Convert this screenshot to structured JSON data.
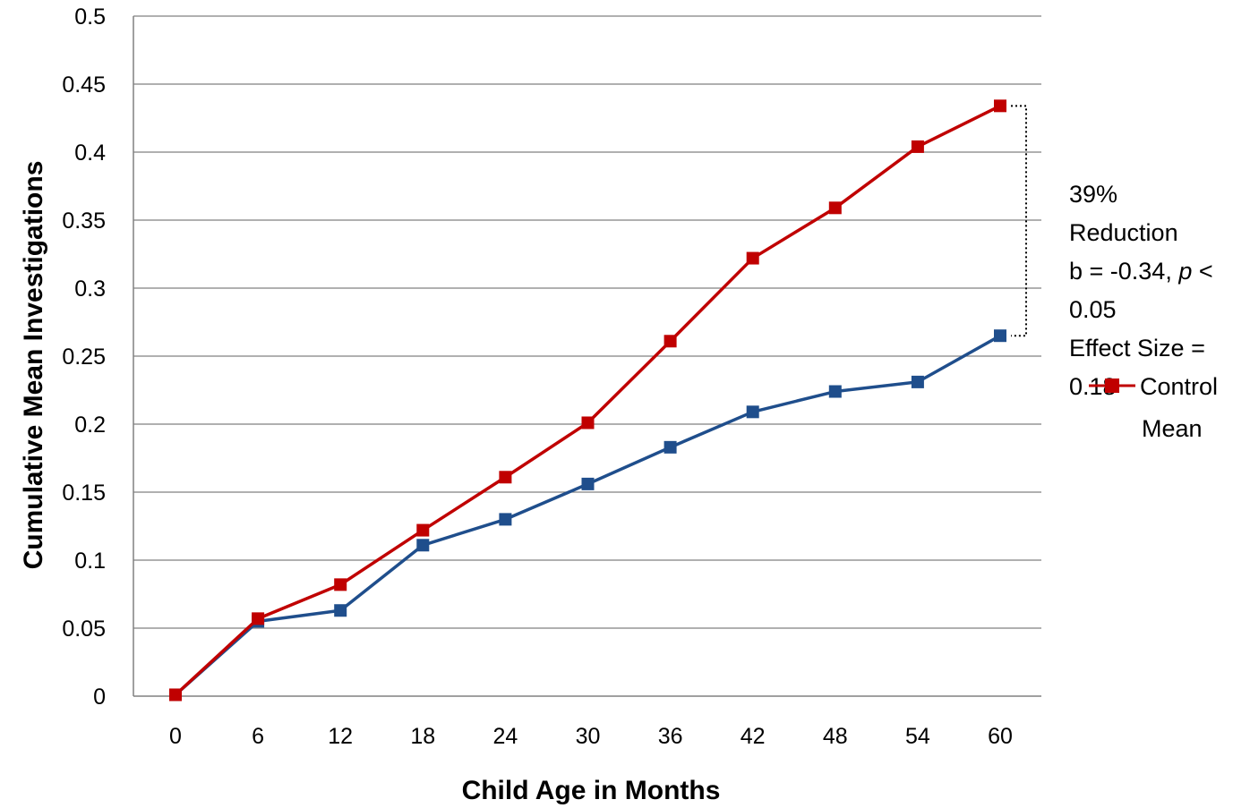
{
  "chart_data": {
    "type": "line",
    "xlabel": "Child Age in Months",
    "ylabel": "Cumulative Mean Investigations",
    "x": [
      0,
      6,
      12,
      18,
      24,
      30,
      36,
      42,
      48,
      54,
      60
    ],
    "ylim": [
      0,
      0.5
    ],
    "yticks": [
      "0",
      "0.05",
      "0.1",
      "0.15",
      "0.2",
      "0.25",
      "0.3",
      "0.35",
      "0.4",
      "0.45",
      "0.5"
    ],
    "grid": true,
    "series": [
      {
        "name": "Control Mean",
        "color": "#c00000",
        "marker": "square",
        "values": [
          0.001,
          0.057,
          0.082,
          0.122,
          0.161,
          0.201,
          0.261,
          0.322,
          0.359,
          0.404,
          0.434
        ]
      },
      {
        "color": "#1f4e8c",
        "marker": "square",
        "values": [
          0.001,
          0.055,
          0.063,
          0.111,
          0.13,
          0.156,
          0.183,
          0.209,
          0.224,
          0.231,
          0.265
        ]
      }
    ],
    "annotation": {
      "lines": [
        "39%",
        "Reduction",
        "b = -0.34, ",
        "0.05",
        "Effect Size =",
        "0.18"
      ],
      "p_symbol": "p",
      "p_after": " <"
    },
    "legend": {
      "placement": "right",
      "lines": [
        "Control",
        "Mean"
      ]
    }
  }
}
